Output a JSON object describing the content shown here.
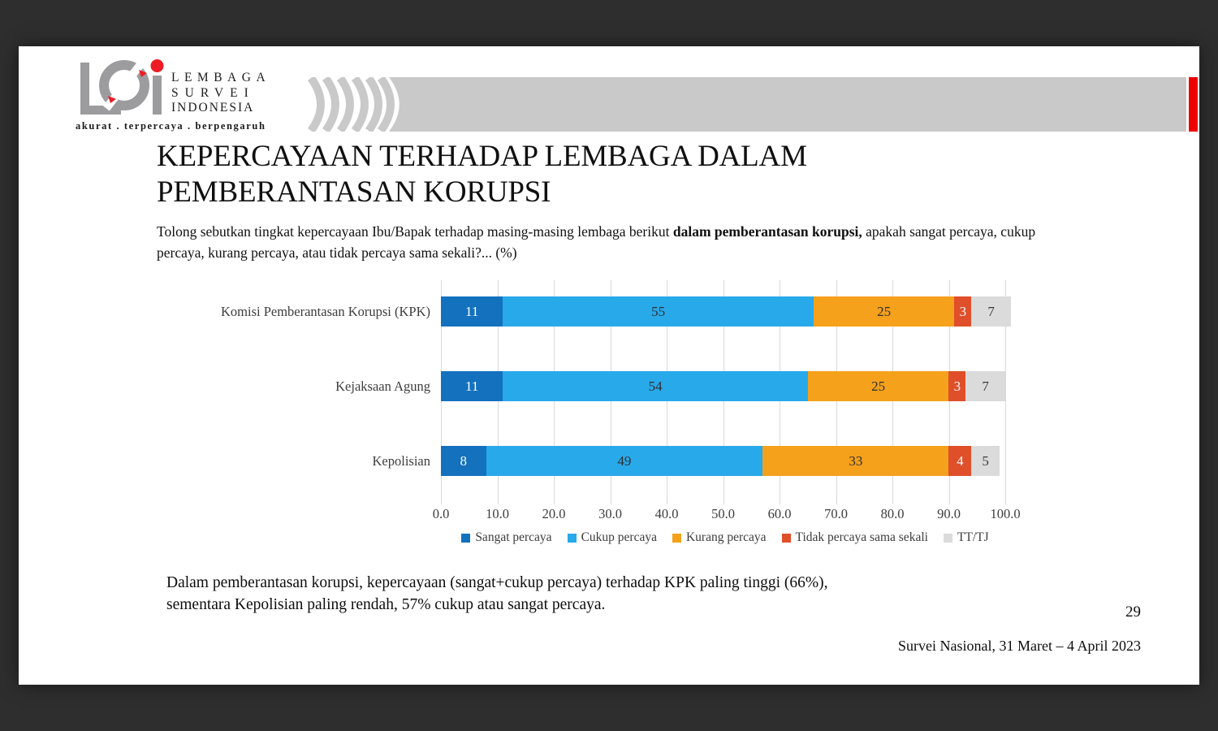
{
  "logo": {
    "lines": [
      "LEMBAGA",
      "SURVEI",
      "INDONESIA"
    ],
    "tagline": "akurat . terpercaya . berpengaruh",
    "gray": "#9c9c9e",
    "red": "#ed1c24"
  },
  "header": {
    "band_color": "#c9c9c9",
    "accent_color": "#ee0000"
  },
  "slide": {
    "title_lines": [
      "KEPERCAYAAN TERHADAP LEMBAGA DALAM",
      "PEMBERANTASAN KORUPSI"
    ],
    "subtitle_parts": [
      {
        "text": "Tolong sebutkan tingkat kepercayaan Ibu/Bapak terhadap masing-masing lembaga berikut ",
        "bold": false
      },
      {
        "text": "dalam pemberantasan korupsi,",
        "bold": true
      },
      {
        "text": " apakah sangat percaya, cukup percaya, kurang percaya, atau tidak percaya sama sekali?... (%)",
        "bold": false
      }
    ],
    "note_lines": [
      "Dalam pemberantasan korupsi, kepercayaan (sangat+cukup percaya) terhadap KPK paling tinggi (66%),",
      "sementara Kepolisian paling rendah, 57% cukup atau sangat percaya."
    ],
    "page_number": "29",
    "footer": "Survei Nasional, 31 Maret – 4 April 2023"
  },
  "chart_data": {
    "type": "bar",
    "orientation": "horizontal_stacked",
    "title": "",
    "xlabel": "",
    "ylabel": "",
    "xlim": [
      0,
      100
    ],
    "grid": true,
    "legend_position": "bottom",
    "categories": [
      "Komisi Pemberantasan Korupsi (KPK)",
      "Kejaksaan Agung",
      "Kepolisian"
    ],
    "series": [
      {
        "name": "Sangat percaya",
        "color": "#1371be",
        "text_color": "#ffffff",
        "values": [
          11,
          11,
          8
        ]
      },
      {
        "name": "Cukup percaya",
        "color": "#28a9ea",
        "text_color": "#2f2f2f",
        "values": [
          55,
          54,
          49
        ]
      },
      {
        "name": "Kurang percaya",
        "color": "#f5a11b",
        "text_color": "#2f2f2f",
        "values": [
          25,
          25,
          33
        ]
      },
      {
        "name": "Tidak percaya sama sekali",
        "color": "#df4f2a",
        "text_color": "#ffffff",
        "values": [
          3,
          3,
          4
        ]
      },
      {
        "name": "TT/TJ",
        "color": "#dbdbdb",
        "text_color": "#3a3a3a",
        "values": [
          7,
          7,
          5
        ]
      }
    ],
    "x_ticks": [
      "0.0",
      "10.0",
      "20.0",
      "30.0",
      "40.0",
      "50.0",
      "60.0",
      "70.0",
      "80.0",
      "90.0",
      "100.0"
    ]
  }
}
